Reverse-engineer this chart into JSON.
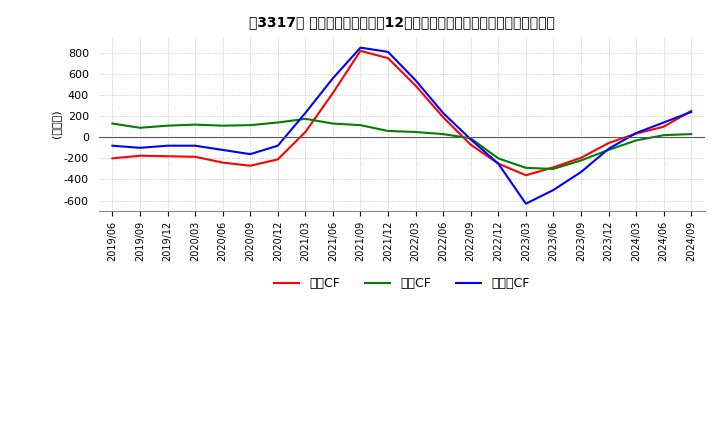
{
  "title": "　3317、 キャッシュフローの12か月移動合計の対前年同期増減額の推移",
  "title_bracket": "　3317、",
  "ylabel": "(百万円)",
  "ylim": [
    -700,
    950
  ],
  "yticks": [
    -600,
    -400,
    -200,
    0,
    200,
    400,
    600,
    800
  ],
  "x_labels": [
    "2019/06",
    "2019/09",
    "2019/12",
    "2020/03",
    "2020/06",
    "2020/09",
    "2020/12",
    "2021/03",
    "2021/06",
    "2021/09",
    "2021/12",
    "2022/03",
    "2022/06",
    "2022/09",
    "2022/12",
    "2023/03",
    "2023/06",
    "2023/09",
    "2023/12",
    "2024/03",
    "2024/06",
    "2024/09"
  ],
  "operating_cf": [
    -200,
    -175,
    -180,
    -185,
    -240,
    -270,
    -210,
    50,
    420,
    820,
    750,
    490,
    190,
    -70,
    -250,
    -360,
    -285,
    -195,
    -55,
    35,
    100,
    250
  ],
  "investing_cf": [
    130,
    90,
    110,
    120,
    110,
    115,
    140,
    175,
    130,
    115,
    60,
    50,
    30,
    -10,
    -200,
    -290,
    -300,
    -220,
    -120,
    -30,
    20,
    30
  ],
  "free_cf": [
    -80,
    -100,
    -80,
    -80,
    -120,
    -160,
    -80,
    230,
    560,
    850,
    810,
    540,
    230,
    -20,
    -250,
    -630,
    -500,
    -330,
    -110,
    40,
    140,
    240
  ],
  "color_operating": "#ff0000",
  "color_investing": "#008000",
  "color_free": "#0000ff",
  "legend_labels": [
    "営業CF",
    "投資CF",
    "フリーCF"
  ],
  "background_color": "#ffffff",
  "grid_color": "#aaaaaa",
  "title_text": "[㌗3317㌗] キャッシュフローの12か月移動合計の対前年同期増減額の推移"
}
